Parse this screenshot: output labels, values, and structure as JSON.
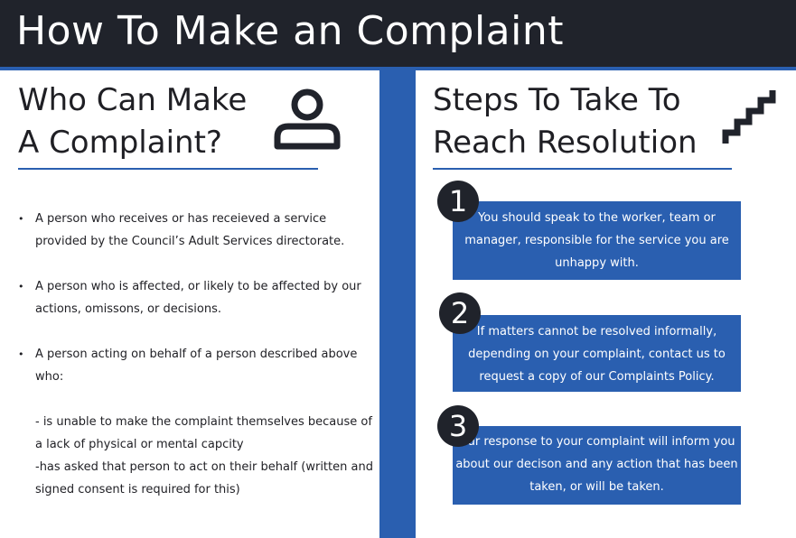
{
  "title": "How To Make an Complaint",
  "left": {
    "heading_line1": "Who Can Make",
    "heading_line2": "A Complaint?",
    "icon": "person-icon",
    "bullets": [
      "A person who receives or has receieved a service provided by the Council’s Adult Services directorate.",
      "A person who is affected, or likely to be affected by our actions, omissons, or decisions.",
      "A person acting on behalf of a person described above who:"
    ],
    "sub_points": [
      "- is unable to make the complaint themselves because of a lack of physical or mental capcity",
      "-has asked that person to act on their behalf (written and signed consent is required for this)"
    ]
  },
  "right": {
    "heading_line1": "Steps To Take To",
    "heading_line2": "Reach Resolution",
    "icon": "stairs-icon",
    "steps": [
      {
        "number": "1",
        "text": "You should speak to the worker, team or manager, responsible for the service you are unhappy with."
      },
      {
        "number": "2",
        "text": "If matters cannot be resolved informally, depending on your complaint, contact us to request a copy of our Complaints Policy."
      },
      {
        "number": "3",
        "text": "Our response to your complaint will inform you about our decison and any action that has been taken, or will be taken."
      }
    ]
  },
  "colors": {
    "dark": "#20232b",
    "accent": "#2a5fb0"
  }
}
